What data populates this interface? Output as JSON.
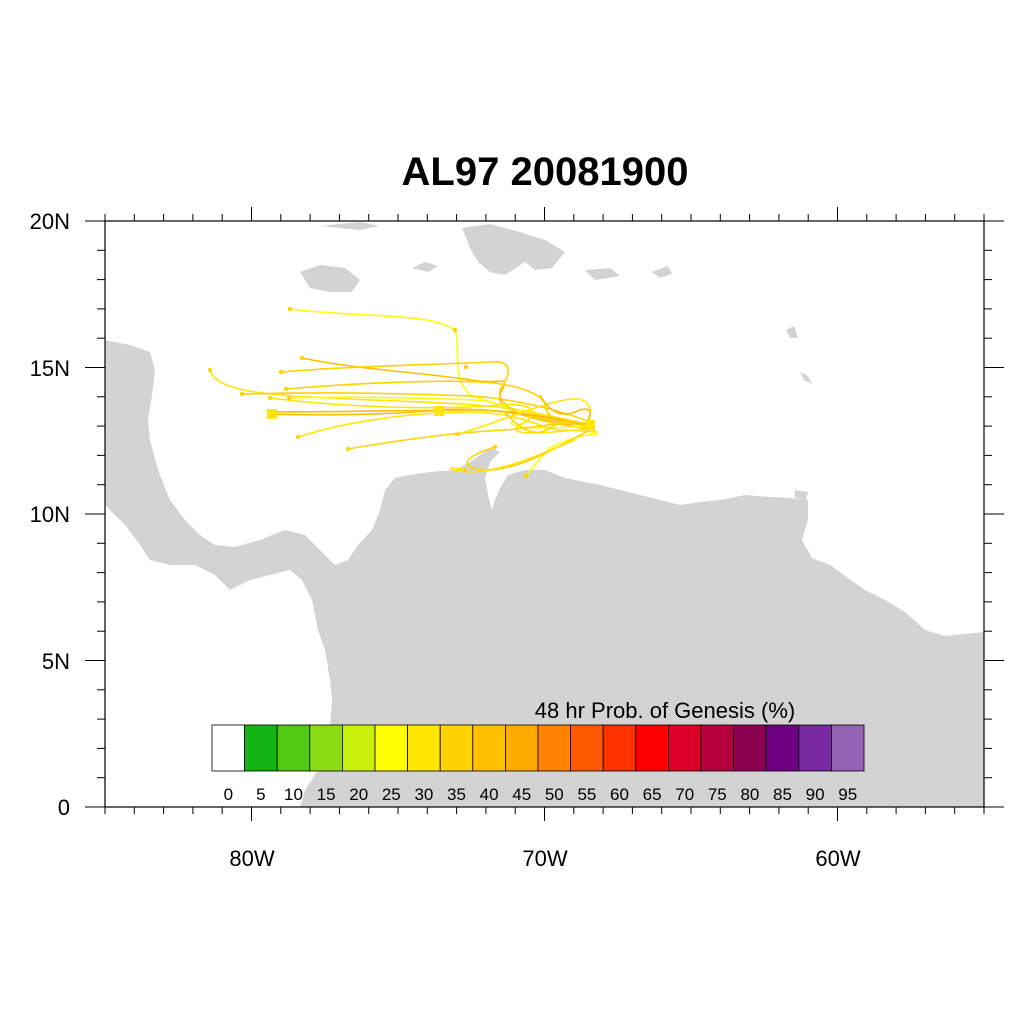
{
  "map": {
    "title": "AL97 20081900",
    "lat_labels": [
      "20N",
      "15N",
      "10N",
      "5N",
      "0"
    ],
    "lon_labels": [
      "80W",
      "70W",
      "60W"
    ],
    "extent": {
      "lon": [
        -85,
        -55
      ],
      "lat": [
        0,
        20
      ]
    },
    "land_color": "#d3d3d3",
    "track_colors": [
      "#ffff00",
      "#ffe600",
      "#ffd200",
      "#ffbe00"
    ]
  },
  "colorbar": {
    "title": "48 hr Prob. of Genesis (%)",
    "labels": [
      "0",
      "5",
      "10",
      "15",
      "20",
      "25",
      "30",
      "35",
      "40",
      "45",
      "50",
      "55",
      "60",
      "65",
      "70",
      "75",
      "80",
      "85",
      "90",
      "95"
    ],
    "colors": [
      "#ffffff",
      "#14b414",
      "#50c814",
      "#8cdc14",
      "#c8f00a",
      "#ffff00",
      "#ffe600",
      "#ffd200",
      "#ffbe00",
      "#ffaa00",
      "#ff8200",
      "#ff5a00",
      "#ff3200",
      "#ff0000",
      "#dc0028",
      "#b4003c",
      "#8c0050",
      "#6e0082",
      "#7828a0",
      "#9664b4"
    ]
  }
}
